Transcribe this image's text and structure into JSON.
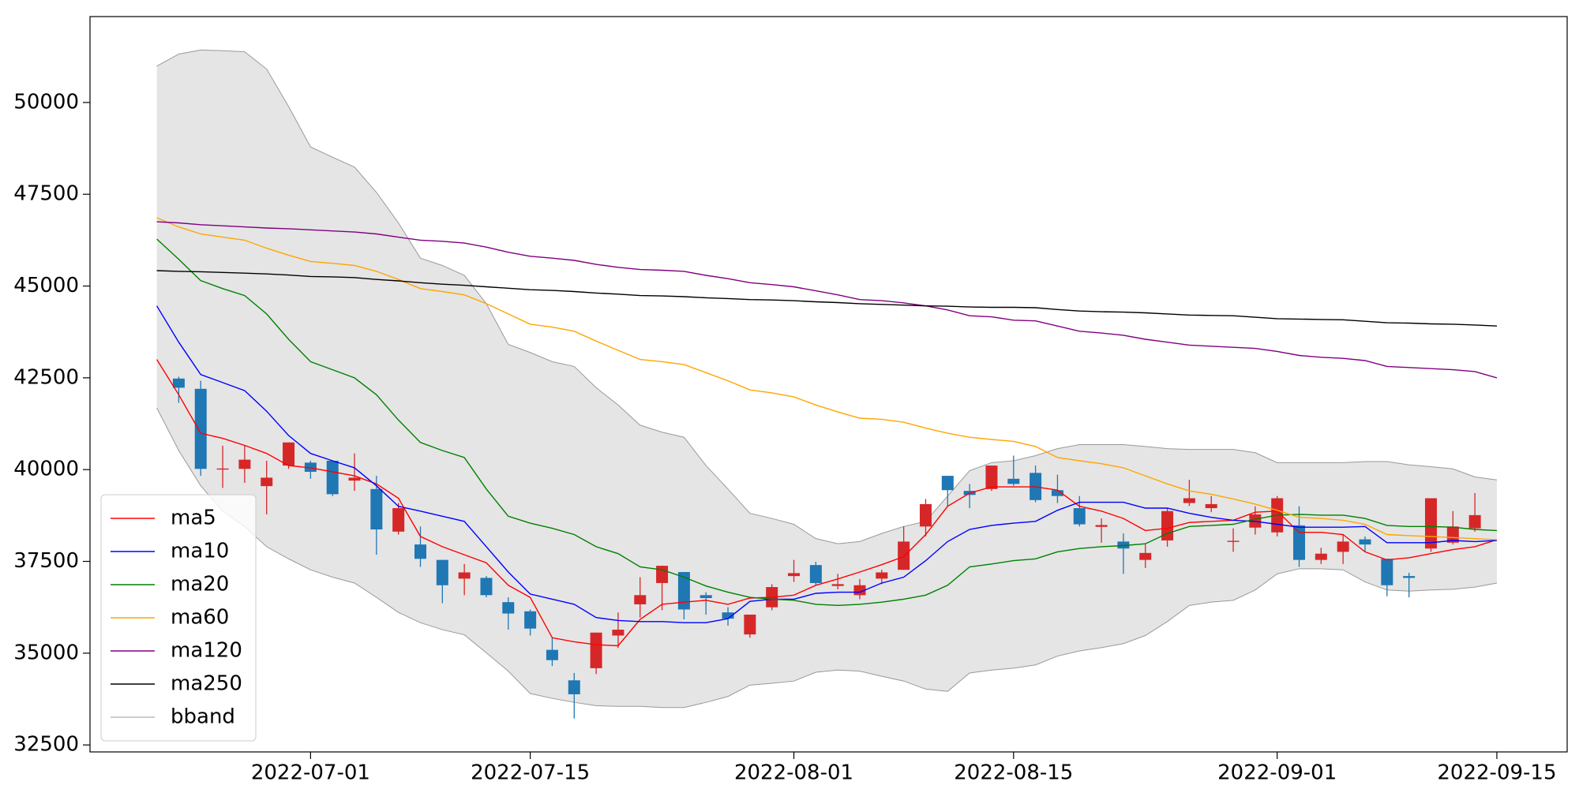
{
  "chart_data": {
    "type": "candlestick",
    "categories": [
      null,
      null,
      null,
      null,
      null,
      null,
      null,
      "2022-07-01",
      null,
      null,
      null,
      null,
      null,
      null,
      null,
      null,
      null,
      "2022-07-15",
      null,
      null,
      null,
      null,
      null,
      null,
      null,
      null,
      null,
      null,
      null,
      "2022-08-01",
      null,
      null,
      null,
      null,
      null,
      null,
      null,
      null,
      null,
      "2022-08-15",
      null,
      null,
      null,
      null,
      null,
      null,
      null,
      null,
      null,
      null,
      null,
      "2022-09-01",
      null,
      null,
      null,
      null,
      null,
      null,
      null,
      null,
      null,
      "2022-09-15"
    ],
    "open": [
      null,
      42480,
      42200,
      40000,
      40020,
      39550,
      40110,
      40190,
      40240,
      39700,
      39470,
      38310,
      37960,
      37540,
      37030,
      37050,
      36390,
      36140,
      35090,
      34260,
      34590,
      35480,
      36330,
      36910,
      37210,
      36580,
      36110,
      35510,
      36250,
      37100,
      37400,
      36830,
      36580,
      37030,
      37270,
      38450,
      39830,
      39420,
      39470,
      39750,
      39910,
      39440,
      38950,
      38440,
      38040,
      37540,
      38070,
      39090,
      38950,
      38030,
      38420,
      38290,
      38480,
      37540,
      37760,
      38100,
      37570,
      37100,
      37850,
      38010,
      38400,
      null
    ],
    "high": [
      null,
      42530,
      42420,
      40650,
      40650,
      40240,
      40740,
      40240,
      40240,
      40440,
      39830,
      39090,
      38450,
      37540,
      37430,
      37100,
      36520,
      36190,
      35420,
      34460,
      35560,
      36110,
      37070,
      37380,
      37210,
      36660,
      36250,
      36050,
      36880,
      37540,
      37490,
      37160,
      37020,
      37270,
      38450,
      39200,
      39830,
      39610,
      40110,
      40380,
      40110,
      39860,
      39280,
      38670,
      38260,
      37960,
      38950,
      39720,
      39280,
      38400,
      39000,
      39280,
      39000,
      37870,
      38230,
      38180,
      37570,
      37190,
      39220,
      38870,
      39360,
      null
    ],
    "low": [
      null,
      41820,
      39830,
      39500,
      39640,
      38780,
      40020,
      39750,
      39280,
      39420,
      37680,
      38230,
      37350,
      36360,
      36580,
      36520,
      35640,
      35480,
      34650,
      33220,
      34430,
      35140,
      35970,
      36170,
      35920,
      36050,
      35750,
      35420,
      36170,
      36940,
      36850,
      36740,
      36470,
      36880,
      37270,
      38180,
      39010,
      38950,
      39420,
      39560,
      39110,
      39090,
      38450,
      38010,
      37160,
      37320,
      37900,
      39010,
      38840,
      37760,
      38230,
      38180,
      37350,
      37430,
      37430,
      37760,
      36550,
      36520,
      37760,
      37960,
      38310,
      null
    ],
    "close": [
      null,
      42230,
      40020,
      40030,
      40270,
      39780,
      40740,
      39940,
      39330,
      39780,
      38370,
      38950,
      37570,
      36850,
      37200,
      36580,
      36080,
      35670,
      34810,
      33880,
      35560,
      35640,
      36580,
      37380,
      36190,
      36500,
      35940,
      36050,
      36800,
      37180,
      36910,
      36880,
      36850,
      37200,
      38040,
      39060,
      39440,
      39310,
      40110,
      39610,
      39170,
      39280,
      38510,
      38490,
      37850,
      37730,
      38870,
      39220,
      39060,
      38060,
      38780,
      39220,
      37540,
      37710,
      38040,
      37960,
      36850,
      37050,
      39220,
      38450,
      38760,
      null
    ],
    "up_color": "#d62728",
    "down_color": "#1f77b4",
    "series": [
      {
        "name": "ma5",
        "color": "#ff0000",
        "values": [
          43000,
          42040,
          40990,
          40850,
          40660,
          40440,
          40110,
          40050,
          39940,
          39830,
          39610,
          39220,
          38180,
          37900,
          37680,
          37460,
          36850,
          36520,
          35420,
          35310,
          35230,
          35200,
          35920,
          36330,
          36390,
          36440,
          36330,
          36500,
          36520,
          36580,
          36850,
          37020,
          37210,
          37410,
          37630,
          38230,
          39000,
          39360,
          39530,
          39530,
          39530,
          39440,
          39000,
          38870,
          38670,
          38340,
          38400,
          38560,
          38590,
          38620,
          38840,
          38870,
          38290,
          38290,
          38230,
          37760,
          37540,
          37600,
          37710,
          37820,
          37900,
          38090
        ]
      },
      {
        "name": "ma10",
        "color": "#0000ff",
        "values": [
          44460,
          43470,
          42590,
          42370,
          42150,
          41590,
          40930,
          40440,
          40240,
          40050,
          39560,
          39000,
          38870,
          38730,
          38590,
          37900,
          37210,
          36610,
          36470,
          36330,
          35970,
          35890,
          35860,
          35860,
          35830,
          35830,
          35940,
          36410,
          36470,
          36470,
          36630,
          36660,
          36660,
          36910,
          37070,
          37520,
          38040,
          38370,
          38480,
          38540,
          38590,
          38890,
          39110,
          39110,
          39110,
          38950,
          38950,
          38810,
          38700,
          38620,
          38590,
          38510,
          38430,
          38430,
          38430,
          38450,
          38010,
          38010,
          38010,
          38070,
          38040,
          38070
        ]
      },
      {
        "name": "ma20",
        "color": "#008000",
        "values": [
          46280,
          45730,
          45150,
          44930,
          44740,
          44240,
          43550,
          42940,
          42720,
          42500,
          42040,
          41350,
          40740,
          40520,
          40330,
          39470,
          38730,
          38540,
          38400,
          38230,
          37900,
          37710,
          37350,
          37270,
          37070,
          36830,
          36660,
          36520,
          36470,
          36440,
          36330,
          36300,
          36330,
          36390,
          36470,
          36580,
          36850,
          37350,
          37430,
          37520,
          37570,
          37760,
          37850,
          37900,
          37930,
          37980,
          38260,
          38450,
          38480,
          38510,
          38650,
          38760,
          38780,
          38760,
          38760,
          38670,
          38480,
          38450,
          38450,
          38430,
          38370,
          38340
        ]
      },
      {
        "name": "ma60",
        "color": "#ffa500",
        "values": [
          46860,
          46610,
          46420,
          46330,
          46250,
          46030,
          45840,
          45670,
          45620,
          45560,
          45400,
          45180,
          44930,
          44850,
          44760,
          44520,
          44240,
          43960,
          43880,
          43770,
          43500,
          43250,
          43000,
          42940,
          42860,
          42640,
          42420,
          42170,
          42090,
          41980,
          41760,
          41570,
          41400,
          41370,
          41290,
          41130,
          40990,
          40880,
          40820,
          40770,
          40630,
          40330,
          40240,
          40160,
          40050,
          39830,
          39610,
          39420,
          39330,
          39200,
          39060,
          38890,
          38700,
          38670,
          38620,
          38510,
          38230,
          38200,
          38180,
          38150,
          38120,
          38090
        ]
      },
      {
        "name": "ma120",
        "color": "#800080",
        "values": [
          46750,
          46720,
          46670,
          46640,
          46610,
          46580,
          46560,
          46530,
          46500,
          46470,
          46420,
          46330,
          46250,
          46220,
          46170,
          46060,
          45920,
          45810,
          45760,
          45700,
          45590,
          45510,
          45450,
          45430,
          45400,
          45290,
          45200,
          45090,
          45040,
          44980,
          44870,
          44760,
          44630,
          44600,
          44540,
          44460,
          44350,
          44190,
          44160,
          44070,
          44050,
          43910,
          43770,
          43720,
          43660,
          43550,
          43470,
          43390,
          43360,
          43330,
          43300,
          43220,
          43110,
          43060,
          43030,
          42970,
          42810,
          42780,
          42750,
          42720,
          42670,
          42500
        ]
      },
      {
        "name": "ma250",
        "color": "#000000",
        "values": [
          45420,
          45400,
          45390,
          45370,
          45350,
          45330,
          45300,
          45260,
          45250,
          45230,
          45180,
          45140,
          45090,
          45050,
          45020,
          44980,
          44940,
          44900,
          44880,
          44850,
          44810,
          44780,
          44740,
          44730,
          44710,
          44680,
          44660,
          44630,
          44620,
          44600,
          44570,
          44550,
          44520,
          44500,
          44480,
          44460,
          44450,
          44430,
          44420,
          44420,
          44410,
          44360,
          44320,
          44300,
          44290,
          44270,
          44240,
          44210,
          44200,
          44190,
          44150,
          44110,
          44100,
          44090,
          44080,
          44040,
          44000,
          43990,
          43970,
          43960,
          43940,
          43910
        ]
      }
    ],
    "band": {
      "name": "bband",
      "color": "#999999",
      "fill": "#e5e5e5",
      "upper": [
        50990,
        51320,
        51430,
        51410,
        51380,
        50910,
        49890,
        48790,
        48510,
        48240,
        47550,
        46720,
        45760,
        45560,
        45290,
        44520,
        43410,
        43190,
        42940,
        42810,
        42230,
        41760,
        41210,
        41020,
        40880,
        40110,
        39470,
        38810,
        38670,
        38510,
        38120,
        37980,
        38040,
        38260,
        38450,
        38590,
        39280,
        39970,
        40190,
        40240,
        40380,
        40570,
        40680,
        40680,
        40680,
        40630,
        40570,
        40550,
        40550,
        40550,
        40460,
        40190,
        40190,
        40190,
        40190,
        40220,
        40220,
        40130,
        40080,
        40020,
        39800,
        39720
      ],
      "lower": [
        41680,
        40520,
        39560,
        38870,
        38450,
        37900,
        37570,
        37270,
        37070,
        36910,
        36520,
        36110,
        35830,
        35640,
        35500,
        35010,
        34510,
        33900,
        33770,
        33660,
        33570,
        33550,
        33550,
        33520,
        33520,
        33660,
        33820,
        34130,
        34180,
        34240,
        34480,
        34540,
        34510,
        34370,
        34240,
        34020,
        33960,
        34460,
        34540,
        34590,
        34680,
        34920,
        35060,
        35150,
        35260,
        35480,
        35860,
        36300,
        36390,
        36440,
        36720,
        37160,
        37300,
        37300,
        37270,
        36940,
        36720,
        36690,
        36720,
        36740,
        36800,
        36910
      ]
    },
    "ylim": [
      32310,
      52340
    ],
    "yticks": [
      32500,
      35000,
      37500,
      40000,
      42500,
      45000,
      47500,
      50000
    ],
    "legend": "lower left"
  }
}
